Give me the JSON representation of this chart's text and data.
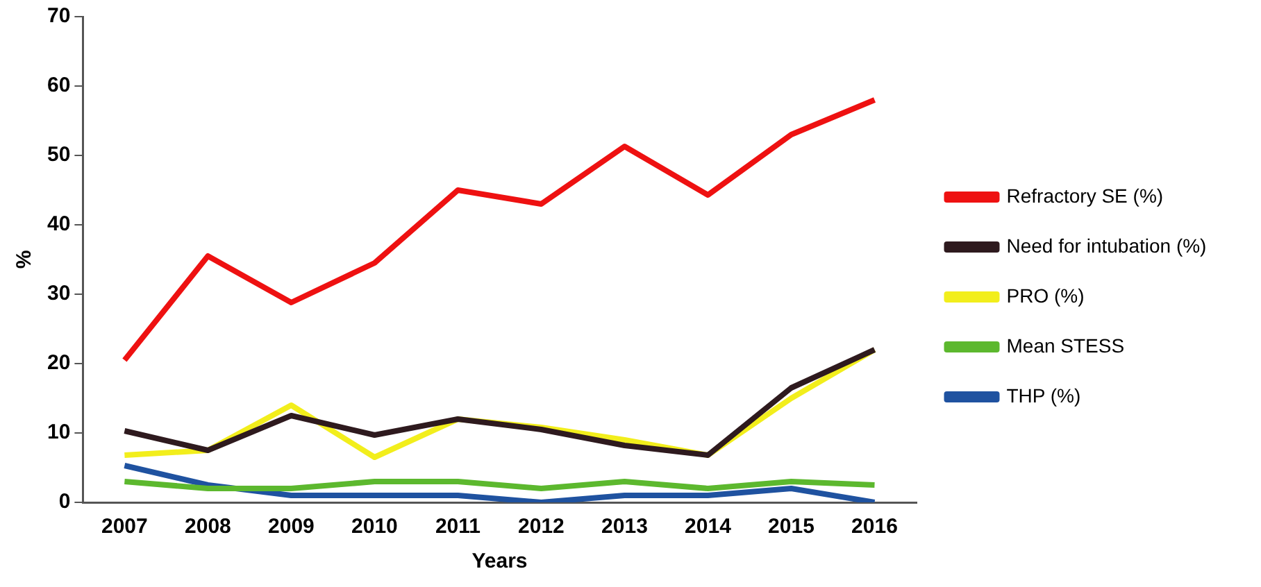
{
  "chart_data": {
    "type": "line",
    "xlabel": "Years",
    "ylabel": "%",
    "categories": [
      "2007",
      "2008",
      "2009",
      "2010",
      "2011",
      "2012",
      "2013",
      "2014",
      "2015",
      "2016"
    ],
    "series": [
      {
        "name": "Refractory SE (%)",
        "color": "#ee1111",
        "values": [
          20.5,
          35.5,
          28.8,
          34.5,
          45,
          43,
          51.3,
          44.3,
          53,
          58
        ]
      },
      {
        "name": "Need for intubation (%)",
        "color": "#2e1a1e",
        "values": [
          10.3,
          7.5,
          12.5,
          9.7,
          12,
          10.5,
          8.2,
          6.8,
          16.5,
          22
        ]
      },
      {
        "name": "PRO (%)",
        "color": "#f2ee1c",
        "values": [
          6.8,
          7.5,
          14,
          6.5,
          12,
          10.8,
          9,
          6.8,
          15,
          22
        ]
      },
      {
        "name": "Mean STESS",
        "color": "#5cb82e",
        "values": [
          3,
          2,
          2,
          3,
          3,
          2,
          3,
          2,
          3,
          2.5
        ]
      },
      {
        "name": "THP (%)",
        "color": "#1f52a0",
        "values": [
          5.3,
          2.5,
          1,
          1,
          1,
          0,
          1,
          1,
          2,
          0
        ]
      }
    ],
    "ylim": [
      0,
      70
    ],
    "yticks": [
      0,
      10,
      20,
      30,
      40,
      50,
      60,
      70
    ],
    "grid": false,
    "legend": "right",
    "marker": "none",
    "line_style": "solid"
  }
}
